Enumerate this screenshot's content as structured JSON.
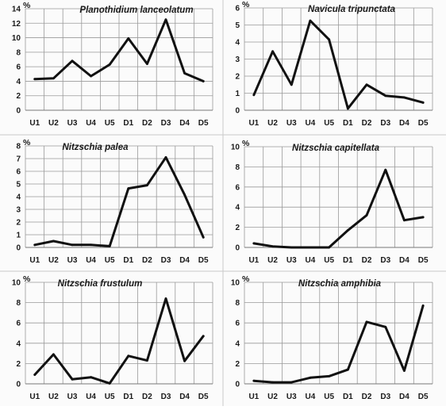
{
  "figure": {
    "line_color": "#111111",
    "grid_color": "#9a9a9a"
  },
  "chart_data": [
    {
      "type": "line",
      "title": "Planothidium lanceolatum",
      "ylabel": "%",
      "categories": [
        "U1",
        "U2",
        "U3",
        "U4",
        "U5",
        "D1",
        "D2",
        "D3",
        "D4",
        "D5"
      ],
      "values": [
        4.3,
        4.4,
        6.8,
        4.7,
        6.3,
        9.9,
        6.4,
        12.5,
        5.1,
        4.0
      ],
      "ylim": [
        0,
        14
      ],
      "yticks": [
        "0",
        "2",
        "4",
        "6",
        "8",
        "10",
        "12",
        "14"
      ],
      "grid": true
    },
    {
      "type": "line",
      "title": "Navicula tripunctata",
      "ylabel": "%",
      "categories": [
        "U1",
        "U2",
        "U3",
        "U4",
        "U5",
        "D1",
        "D2",
        "D3",
        "D4",
        "D5"
      ],
      "values": [
        0.9,
        3.45,
        1.5,
        5.25,
        4.15,
        0.1,
        1.5,
        0.85,
        0.75,
        0.45
      ],
      "ylim": [
        0,
        6
      ],
      "yticks": [
        "0",
        "1",
        "2",
        "3",
        "4",
        "5",
        "6"
      ],
      "grid": true
    },
    {
      "type": "line",
      "title": "Nitzschia palea",
      "ylabel": "%",
      "categories": [
        "U1",
        "U2",
        "U3",
        "U4",
        "U5",
        "D1",
        "D2",
        "D3",
        "D4",
        "D5"
      ],
      "values": [
        0.2,
        0.5,
        0.2,
        0.2,
        0.1,
        4.65,
        4.9,
        7.1,
        4.15,
        0.8
      ],
      "ylim": [
        0,
        8
      ],
      "yticks": [
        "0",
        "1",
        "2",
        "3",
        "4",
        "5",
        "6",
        "7",
        "8"
      ],
      "grid": true
    },
    {
      "type": "line",
      "title": "Nitzschia capitellata",
      "ylabel": "%",
      "categories": [
        "U1",
        "U2",
        "U3",
        "U4",
        "U5",
        "D1",
        "D2",
        "D3",
        "D4",
        "D5"
      ],
      "values": [
        0.4,
        0.1,
        0.0,
        0.0,
        0.0,
        1.7,
        3.2,
        7.7,
        2.7,
        3.0
      ],
      "ylim": [
        0,
        10
      ],
      "yticks": [
        "0",
        "2",
        "4",
        "6",
        "8",
        "10"
      ],
      "grid": true
    },
    {
      "type": "line",
      "title": "Nitzschia frustulum",
      "ylabel": "%",
      "categories": [
        "U1",
        "U2",
        "U3",
        "U4",
        "U5",
        "D1",
        "D2",
        "D3",
        "D4",
        "D5"
      ],
      "values": [
        0.9,
        2.9,
        0.45,
        0.65,
        0.05,
        2.75,
        2.3,
        8.4,
        2.25,
        4.7
      ],
      "ylim": [
        0,
        10
      ],
      "yticks": [
        "0",
        "2",
        "4",
        "6",
        "8",
        "10"
      ],
      "grid": true
    },
    {
      "type": "line",
      "title": "Nitzschia amphibia",
      "ylabel": "%",
      "categories": [
        "U1",
        "U2",
        "U3",
        "U4",
        "U5",
        "D1",
        "D2",
        "D3",
        "D4",
        "D5"
      ],
      "values": [
        0.3,
        0.15,
        0.15,
        0.6,
        0.75,
        1.4,
        6.1,
        5.6,
        1.3,
        7.7
      ],
      "ylim": [
        0,
        10
      ],
      "yticks": [
        "0",
        "2",
        "4",
        "6",
        "8",
        "10"
      ],
      "grid": true
    }
  ]
}
